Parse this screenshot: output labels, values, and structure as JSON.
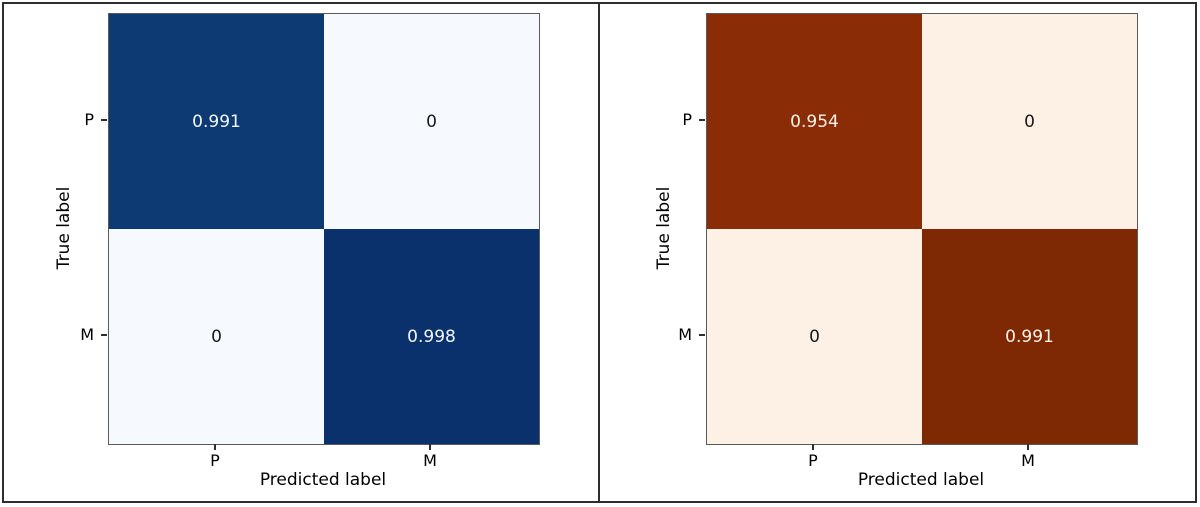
{
  "figure": {
    "background_color": "#ffffff",
    "frame_color": "#2e2e2e"
  },
  "chart_data": [
    {
      "type": "heatmap",
      "subtype": "confusion-matrix",
      "colormap": "Blues",
      "title": "",
      "xlabel": "Predicted label",
      "ylabel": "True label",
      "x_tick_labels": [
        "P",
        "M"
      ],
      "y_tick_labels": [
        "P",
        "M"
      ],
      "values": [
        [
          0.991,
          0
        ],
        [
          0,
          0.998
        ]
      ],
      "value_range": [
        0,
        1
      ],
      "grid": false,
      "legend": "none",
      "color_scale": {
        "min_color": "#f6f9fe",
        "max_color": "#08306b"
      },
      "cells": [
        [
          {
            "label": "0.991",
            "bg": "#0e3a73",
            "fg": "#f4f7fb"
          },
          {
            "label": "0",
            "bg": "#f6f9fe",
            "fg": "#1a1a1a"
          }
        ],
        [
          {
            "label": "0",
            "bg": "#f6f9fe",
            "fg": "#1a1a1a"
          },
          {
            "label": "0.998",
            "bg": "#0a316c",
            "fg": "#f4f7fb"
          }
        ]
      ]
    },
    {
      "type": "heatmap",
      "subtype": "confusion-matrix",
      "colormap": "Oranges",
      "title": "",
      "xlabel": "Predicted label",
      "ylabel": "True label",
      "x_tick_labels": [
        "P",
        "M"
      ],
      "y_tick_labels": [
        "P",
        "M"
      ],
      "values": [
        [
          0.954,
          0
        ],
        [
          0,
          0.991
        ]
      ],
      "value_range": [
        0,
        1
      ],
      "grid": false,
      "legend": "none",
      "color_scale": {
        "min_color": "#fdf1e5",
        "max_color": "#7f2704"
      },
      "cells": [
        [
          {
            "label": "0.954",
            "bg": "#8a2c06",
            "fg": "#fcf3ea"
          },
          {
            "label": "0",
            "bg": "#fdf1e5",
            "fg": "#1a1a1a"
          }
        ],
        [
          {
            "label": "0",
            "bg": "#fdf1e5",
            "fg": "#1a1a1a"
          },
          {
            "label": "0.991",
            "bg": "#7e2804",
            "fg": "#fcf3ea"
          }
        ]
      ]
    }
  ]
}
